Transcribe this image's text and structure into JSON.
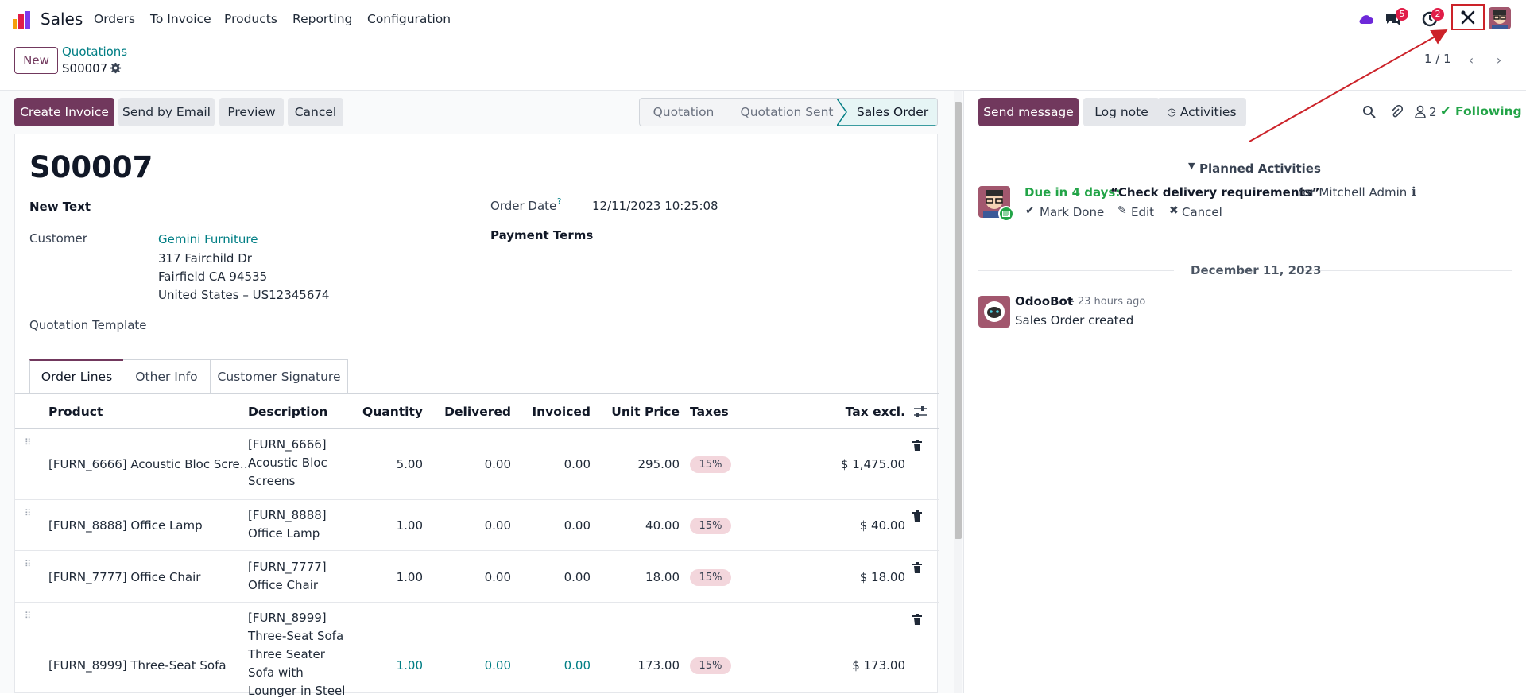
{
  "app": {
    "name": "Sales"
  },
  "menu": [
    "Orders",
    "To Invoice",
    "Products",
    "Reporting",
    "Configuration"
  ],
  "systray": {
    "chat_count": "5",
    "activity_count": "2"
  },
  "breadcrumb": {
    "parent": "Quotations",
    "current": "S00007"
  },
  "control": {
    "new_label": "New",
    "pager": "1 / 1"
  },
  "actions": {
    "create_invoice": "Create Invoice",
    "send_email": "Send by Email",
    "preview": "Preview",
    "cancel": "Cancel"
  },
  "status": {
    "stages": [
      "Quotation",
      "Quotation Sent",
      "Sales Order"
    ],
    "current": "Sales Order"
  },
  "order": {
    "name": "S00007",
    "new_text_label": "New Text",
    "customer_label": "Customer",
    "customer_name": "Gemini Furniture",
    "addr1": "317 Fairchild Dr",
    "addr2": "Fairfield CA 94535",
    "addr3": "United States – US12345674",
    "template_label": "Quotation Template",
    "date_label": "Order Date",
    "date_help": "?",
    "date_value": "12/11/2023 10:25:08",
    "payment_label": "Payment Terms"
  },
  "tabs": [
    "Order Lines",
    "Other Info",
    "Customer Signature"
  ],
  "lines": {
    "headers": {
      "product": "Product",
      "description": "Description",
      "quantity": "Quantity",
      "delivered": "Delivered",
      "invoiced": "Invoiced",
      "unit_price": "Unit Price",
      "taxes": "Taxes",
      "tax_excl": "Tax excl."
    },
    "rows": [
      {
        "product": "[FURN_6666] Acoustic Bloc Scre…",
        "desc": [
          "[FURN_6666]",
          "Acoustic Bloc",
          "Screens"
        ],
        "qty": "5.00",
        "delivered": "0.00",
        "invoiced": "0.00",
        "price": "295.00",
        "tax": "15%",
        "subtotal": "$ 1,475.00"
      },
      {
        "product": "[FURN_8888] Office Lamp",
        "desc": [
          "[FURN_8888]",
          "Office Lamp"
        ],
        "qty": "1.00",
        "delivered": "0.00",
        "invoiced": "0.00",
        "price": "40.00",
        "tax": "15%",
        "subtotal": "$ 40.00"
      },
      {
        "product": "[FURN_7777] Office Chair",
        "desc": [
          "[FURN_7777]",
          "Office Chair"
        ],
        "qty": "1.00",
        "delivered": "0.00",
        "invoiced": "0.00",
        "price": "18.00",
        "tax": "15%",
        "subtotal": "$ 18.00"
      },
      {
        "product": "[FURN_8999] Three-Seat Sofa",
        "desc": [
          "[FURN_8999]",
          "Three-Seat Sofa",
          "Three Seater",
          "Sofa with",
          "Lounger in Steel"
        ],
        "qty": "1.00",
        "delivered": "0.00",
        "invoiced": "0.00",
        "price": "173.00",
        "tax": "15%",
        "subtotal": "$ 173.00"
      }
    ]
  },
  "chatter": {
    "send_message": "Send message",
    "log_note": "Log note",
    "activities": "Activities",
    "followers_count": "2",
    "following": "Following",
    "planned_title": "Planned Activities",
    "activity": {
      "due": "Due in 4 days:",
      "summary": "“Check delivery requirements”",
      "for": "for Mitchell Admin",
      "mark_done": "Mark Done",
      "edit": "Edit",
      "cancel": "Cancel"
    },
    "date_sep": "December 11, 2023",
    "message": {
      "author": "OdooBot",
      "time": "- 23 hours ago",
      "body": "Sales Order created"
    }
  },
  "colors": {
    "brand": "#71385d",
    "link": "#017e84",
    "annotation": "#cc2229"
  }
}
